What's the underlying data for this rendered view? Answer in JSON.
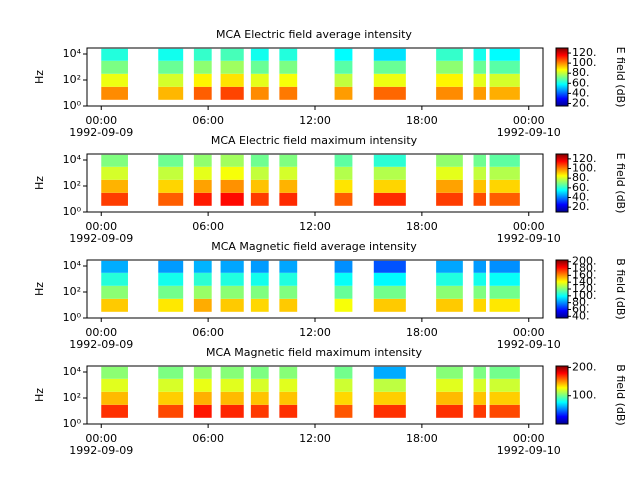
{
  "chart_data": [
    {
      "type": "spectrogram",
      "title": "MCA  Electric field average intensity",
      "ylabel": "Hz",
      "colorbar_label": "E field (dB)",
      "colormap": "jet",
      "log_y": true,
      "xlim": [
        -0.8,
        24.8
      ],
      "xticks": [
        {
          "value": 0,
          "label": "00:00"
        },
        {
          "value": 6,
          "label": "06:00"
        },
        {
          "value": 12,
          "label": "12:00"
        },
        {
          "value": 18,
          "label": "18:00"
        },
        {
          "value": 24,
          "label": "00:00"
        }
      ],
      "date_labels": [
        {
          "value": 0,
          "label": "1992-09-09"
        },
        {
          "value": 24,
          "label": "1992-09-10"
        }
      ],
      "ylim": [
        1,
        29000
      ],
      "yticks": [
        {
          "value": 1,
          "label": "10⁰"
        },
        {
          "value": 100,
          "label": "10²"
        },
        {
          "value": 10000,
          "label": "10⁴"
        }
      ],
      "clim": [
        15,
        130
      ],
      "cticks": [
        {
          "value": 20,
          "label": "20."
        },
        {
          "value": 40,
          "label": "40."
        },
        {
          "value": 60,
          "label": "60."
        },
        {
          "value": 80,
          "label": "80."
        },
        {
          "value": 100,
          "label": "100."
        },
        {
          "value": 120,
          "label": "120."
        }
      ],
      "segments": [
        [
          0,
          1.5
        ],
        [
          3.2,
          4.6
        ],
        [
          5.2,
          6.2
        ],
        [
          6.7,
          8.0
        ],
        [
          8.4,
          9.4
        ],
        [
          10.0,
          11.0
        ],
        [
          13.1,
          14.1
        ],
        [
          15.3,
          17.1
        ],
        [
          18.8,
          20.3
        ],
        [
          20.9,
          21.6
        ],
        [
          21.8,
          23.5
        ]
      ],
      "bands": [
        3,
        30,
        300,
        3000,
        25000
      ],
      "z": [
        [
          100,
          95,
          105,
          108,
          100,
          102,
          98,
          104,
          100,
          98,
          96
        ],
        [
          85,
          82,
          88,
          90,
          84,
          86,
          80,
          85,
          88,
          84,
          82
        ],
        [
          72,
          70,
          74,
          76,
          70,
          72,
          68,
          70,
          74,
          70,
          68
        ],
        [
          62,
          60,
          64,
          66,
          60,
          62,
          58,
          55,
          64,
          60,
          58
        ]
      ]
    },
    {
      "type": "spectrogram",
      "title": "MCA  Electric field maximum intensity",
      "ylabel": "Hz",
      "colorbar_label": "E field (dB)",
      "colormap": "jet",
      "log_y": true,
      "xlim": [
        -0.8,
        24.8
      ],
      "xticks": [
        {
          "value": 0,
          "label": "00:00"
        },
        {
          "value": 6,
          "label": "06:00"
        },
        {
          "value": 12,
          "label": "12:00"
        },
        {
          "value": 18,
          "label": "18:00"
        },
        {
          "value": 24,
          "label": "00:00"
        }
      ],
      "date_labels": [
        {
          "value": 0,
          "label": "1992-09-09"
        },
        {
          "value": 24,
          "label": "1992-09-10"
        }
      ],
      "ylim": [
        1,
        29000
      ],
      "yticks": [
        {
          "value": 1,
          "label": "10⁰"
        },
        {
          "value": 100,
          "label": "10²"
        },
        {
          "value": 10000,
          "label": "10⁴"
        }
      ],
      "clim": [
        10,
        130
      ],
      "cticks": [
        {
          "value": 20,
          "label": "20."
        },
        {
          "value": 40,
          "label": "40."
        },
        {
          "value": 60,
          "label": "60."
        },
        {
          "value": 80,
          "label": "80."
        },
        {
          "value": 100,
          "label": "100."
        },
        {
          "value": 120,
          "label": "120."
        }
      ],
      "segments": [
        [
          0,
          1.5
        ],
        [
          3.2,
          4.6
        ],
        [
          5.2,
          6.2
        ],
        [
          6.7,
          8.0
        ],
        [
          8.4,
          9.4
        ],
        [
          10.0,
          11.0
        ],
        [
          13.1,
          14.1
        ],
        [
          15.3,
          17.1
        ],
        [
          18.8,
          20.3
        ],
        [
          20.9,
          21.6
        ],
        [
          21.8,
          23.5
        ]
      ],
      "bands": [
        3,
        30,
        300,
        3000,
        25000
      ],
      "z": [
        [
          108,
          104,
          112,
          114,
          108,
          110,
          104,
          110,
          108,
          106,
          104
        ],
        [
          94,
          90,
          96,
          98,
          92,
          94,
          88,
          90,
          96,
          92,
          90
        ],
        [
          80,
          78,
          82,
          84,
          78,
          80,
          76,
          76,
          82,
          78,
          76
        ],
        [
          70,
          68,
          72,
          74,
          68,
          70,
          66,
          60,
          72,
          68,
          66
        ]
      ]
    },
    {
      "type": "spectrogram",
      "title": "MCA  Magnetic field average intensity",
      "ylabel": "Hz",
      "colorbar_label": "B field (dB)",
      "colormap": "jet",
      "log_y": true,
      "xlim": [
        -0.8,
        24.8
      ],
      "xticks": [
        {
          "value": 0,
          "label": "00:00"
        },
        {
          "value": 6,
          "label": "06:00"
        },
        {
          "value": 12,
          "label": "12:00"
        },
        {
          "value": 18,
          "label": "18:00"
        },
        {
          "value": 24,
          "label": "00:00"
        }
      ],
      "date_labels": [
        {
          "value": 0,
          "label": "1992-09-09"
        },
        {
          "value": 24,
          "label": "1992-09-10"
        }
      ],
      "ylim": [
        1,
        29000
      ],
      "yticks": [
        {
          "value": 1,
          "label": "10⁰"
        },
        {
          "value": 100,
          "label": "10²"
        },
        {
          "value": 10000,
          "label": "10⁴"
        }
      ],
      "clim": [
        35,
        205
      ],
      "cticks": [
        {
          "value": 40,
          "label": "40."
        },
        {
          "value": 60,
          "label": "60."
        },
        {
          "value": 80,
          "label": "80."
        },
        {
          "value": 100,
          "label": "100."
        },
        {
          "value": 120,
          "label": "120."
        },
        {
          "value": 140,
          "label": "140."
        },
        {
          "value": 160,
          "label": "160."
        },
        {
          "value": 180,
          "label": "180."
        },
        {
          "value": 200,
          "label": "200."
        }
      ],
      "segments": [
        [
          0,
          1.5
        ],
        [
          3.2,
          4.6
        ],
        [
          5.2,
          6.2
        ],
        [
          6.7,
          8.0
        ],
        [
          8.4,
          9.4
        ],
        [
          10.0,
          11.0
        ],
        [
          13.1,
          14.1
        ],
        [
          15.3,
          17.1
        ],
        [
          18.8,
          20.3
        ],
        [
          20.9,
          21.6
        ],
        [
          21.8,
          23.5
        ]
      ],
      "bands": [
        3,
        30,
        300,
        3000,
        25000
      ],
      "z": [
        [
          150,
          145,
          155,
          150,
          148,
          150,
          140,
          150,
          150,
          148,
          145
        ],
        [
          122,
          118,
          124,
          122,
          120,
          120,
          116,
          118,
          122,
          120,
          118
        ],
        [
          105,
          102,
          106,
          104,
          102,
          104,
          100,
          98,
          104,
          102,
          100
        ],
        [
          85,
          82,
          86,
          84,
          82,
          84,
          80,
          70,
          84,
          82,
          80
        ]
      ]
    },
    {
      "type": "spectrogram",
      "title": "MCA  Magnetic field maximum intensity",
      "ylabel": "Hz",
      "colorbar_label": "B field (dB)",
      "colormap": "jet",
      "log_y": true,
      "xlim": [
        -0.8,
        24.8
      ],
      "xticks": [
        {
          "value": 0,
          "label": "00:00"
        },
        {
          "value": 6,
          "label": "06:00"
        },
        {
          "value": 12,
          "label": "12:00"
        },
        {
          "value": 18,
          "label": "18:00"
        },
        {
          "value": 24,
          "label": "00:00"
        }
      ],
      "date_labels": [
        {
          "value": 0,
          "label": "1992-09-09"
        },
        {
          "value": 24,
          "label": "1992-09-10"
        }
      ],
      "ylim": [
        1,
        29000
      ],
      "yticks": [
        {
          "value": 1,
          "label": "10⁰"
        },
        {
          "value": 100,
          "label": "10²"
        },
        {
          "value": 10000,
          "label": "10⁴"
        }
      ],
      "clim": [
        0,
        205
      ],
      "cticks": [
        {
          "value": 100,
          "label": "100."
        },
        {
          "value": 200,
          "label": "200."
        }
      ],
      "segments": [
        [
          0,
          1.5
        ],
        [
          3.2,
          4.6
        ],
        [
          5.2,
          6.2
        ],
        [
          6.7,
          8.0
        ],
        [
          8.4,
          9.4
        ],
        [
          10.0,
          11.0
        ],
        [
          13.1,
          14.1
        ],
        [
          15.3,
          17.1
        ],
        [
          18.8,
          20.3
        ],
        [
          20.9,
          21.6
        ],
        [
          21.8,
          23.5
        ]
      ],
      "bands": [
        3,
        30,
        300,
        3000,
        25000
      ],
      "z": [
        [
          170,
          165,
          175,
          172,
          168,
          170,
          162,
          170,
          170,
          168,
          165
        ],
        [
          142,
          138,
          144,
          142,
          140,
          140,
          136,
          138,
          142,
          140,
          138
        ],
        [
          122,
          120,
          124,
          122,
          120,
          122,
          118,
          115,
          122,
          120,
          118
        ],
        [
          105,
          102,
          106,
          104,
          102,
          104,
          100,
          60,
          104,
          102,
          100
        ]
      ]
    }
  ]
}
